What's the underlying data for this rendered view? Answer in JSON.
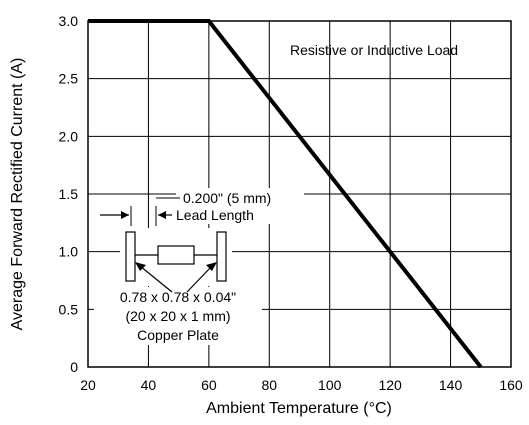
{
  "chart_data": {
    "type": "line",
    "xlabel": "Ambient Temperature (°C)",
    "ylabel": "Average Forward Rectified Current (A)",
    "xlim": [
      20,
      160
    ],
    "ylim": [
      0,
      3.0
    ],
    "x_ticks": [
      "20",
      "40",
      "60",
      "80",
      "100",
      "120",
      "140",
      "160"
    ],
    "y_ticks": [
      "0",
      "0.5",
      "1.0",
      "1.5",
      "2.0",
      "2.5",
      "3.0"
    ],
    "grid": true,
    "series": [
      {
        "x": [
          20,
          60,
          150
        ],
        "y": [
          3.0,
          3.0,
          0
        ]
      }
    ],
    "annotations": {
      "load_label": "Resistive or Inductive Load",
      "lead_length_value": "0.200\" (5 mm)",
      "lead_length_label": "Lead Length",
      "plate_line1": "0.78 x 0.78 x 0.04\"",
      "plate_line2": "(20 x 20 x 1 mm)",
      "plate_line3": "Copper Plate"
    }
  }
}
